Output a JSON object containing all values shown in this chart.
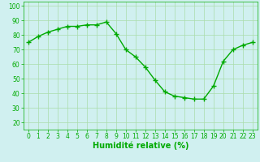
{
  "x": [
    0,
    1,
    2,
    3,
    4,
    5,
    6,
    7,
    8,
    9,
    10,
    11,
    12,
    13,
    14,
    15,
    16,
    17,
    18,
    19,
    20,
    21,
    22,
    23
  ],
  "y": [
    75,
    79,
    82,
    84,
    86,
    86,
    87,
    87,
    89,
    81,
    70,
    65,
    58,
    49,
    41,
    38,
    37,
    36,
    36,
    45,
    62,
    70,
    73,
    75
  ],
  "line_color": "#00aa00",
  "marker": "+",
  "marker_size": 4,
  "bg_color": "#d0f0f0",
  "grid_color": "#aaddaa",
  "xlabel": "Humidité relative (%)",
  "xlabel_color": "#00aa00",
  "ylim": [
    15,
    103
  ],
  "xlim": [
    -0.5,
    23.5
  ],
  "yticks": [
    20,
    30,
    40,
    50,
    60,
    70,
    80,
    90,
    100
  ],
  "xticks": [
    0,
    1,
    2,
    3,
    4,
    5,
    6,
    7,
    8,
    9,
    10,
    11,
    12,
    13,
    14,
    15,
    16,
    17,
    18,
    19,
    20,
    21,
    22,
    23
  ],
  "tick_color": "#00aa00",
  "tick_fontsize": 5.5,
  "xlabel_fontsize": 7,
  "line_width": 1.0,
  "marker_edge_width": 1.0
}
